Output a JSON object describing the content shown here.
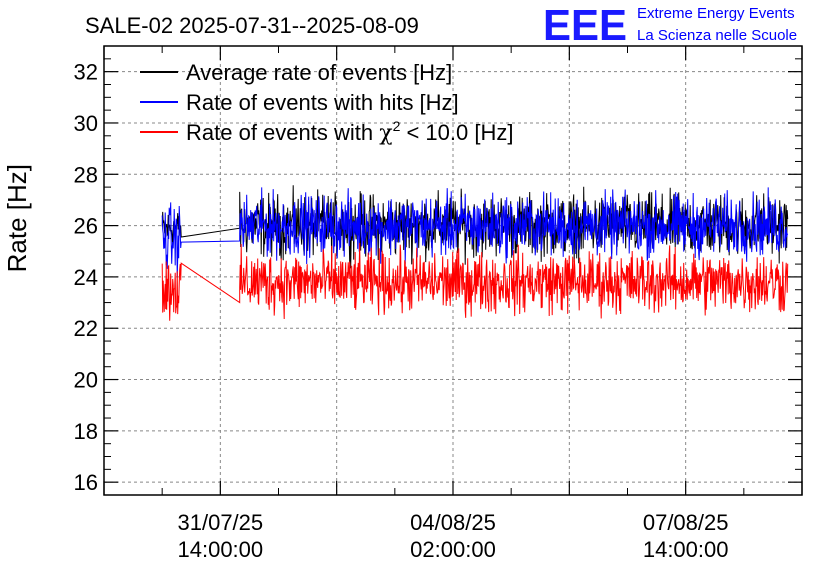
{
  "title": "SALE-02 2025-07-31--2025-08-09",
  "logo": {
    "letters": "EEE",
    "line1": "Extreme Energy Events",
    "line2": "La Scienza nelle Scuole",
    "color": "#0000ff"
  },
  "chart_data": {
    "type": "line",
    "title": "SALE-02 2025-07-31--2025-08-09",
    "xlabel": "",
    "ylabel": "Rate [Hz]",
    "ylim": [
      15.5,
      33
    ],
    "yticks": [
      16,
      18,
      20,
      22,
      24,
      26,
      28,
      30,
      32
    ],
    "xlim": [
      "2025-07-29T20:00",
      "2025-08-09T08:00"
    ],
    "xticks": [
      {
        "date": "2025-07-31T14:00",
        "line1": "31/07/25",
        "line2": "14:00:00"
      },
      {
        "date": "2025-08-04T02:00",
        "line1": "04/08/25",
        "line2": "02:00:00"
      },
      {
        "date": "2025-08-07T14:00",
        "line1": "07/08/25",
        "line2": "14:00:00"
      }
    ],
    "grid": true,
    "legend_position": "top-left",
    "series": [
      {
        "name": "Average rate of events [Hz]",
        "color": "#000000",
        "segments": [
          {
            "start": "2025-07-30T17:00",
            "end": "2025-07-31T00:00",
            "mean": 25.9,
            "noise": 0.7
          },
          {
            "start": "2025-07-31T00:00",
            "end": "2025-07-31T21:00",
            "mean": 25.9,
            "noise": 0.0
          },
          {
            "start": "2025-07-31T21:00",
            "end": "2025-08-09T03:00",
            "mean": 26.0,
            "noise": 1.1
          }
        ]
      },
      {
        "name": "Rate of events with hits [Hz]",
        "color": "#0000ff",
        "segments": [
          {
            "start": "2025-07-30T17:00",
            "end": "2025-07-31T00:00",
            "mean": 25.5,
            "noise": 1.2
          },
          {
            "start": "2025-07-31T00:00",
            "end": "2025-07-31T21:00",
            "mean": 25.4,
            "noise": 0.0
          },
          {
            "start": "2025-07-31T21:00",
            "end": "2025-08-09T03:00",
            "mean": 26.0,
            "noise": 1.1
          }
        ]
      },
      {
        "name": "Rate of events with χ² < 10.0 [Hz]",
        "legend_main": "Rate of events with ",
        "legend_chi": "χ",
        "legend_sup": "2",
        "legend_rest": " < 10.0 [Hz]",
        "color": "#ff0000",
        "segments": [
          {
            "start": "2025-07-30T17:00",
            "end": "2025-07-31T00:00",
            "mean": 23.6,
            "noise": 1.2
          },
          {
            "start": "2025-07-31T00:00",
            "end": "2025-07-31T21:00",
            "mean": 23.0,
            "noise": 0.0
          },
          {
            "start": "2025-07-31T21:00",
            "end": "2025-08-09T03:00",
            "mean": 23.8,
            "noise": 1.1
          }
        ]
      }
    ]
  }
}
